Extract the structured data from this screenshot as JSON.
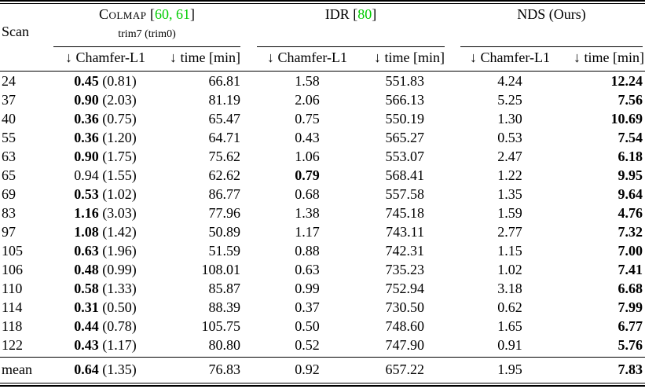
{
  "colors": {
    "citation_green": "#00cc00",
    "text": "#000000",
    "background": "#ffffff"
  },
  "table": {
    "scan_header": "Scan",
    "groups": {
      "colmap": {
        "name": "Colmap",
        "cite_open": " [",
        "cite": "60, 61",
        "cite_close": "]",
        "subtitle": "trim7 (trim0)"
      },
      "idr": {
        "name": "IDR",
        "cite_open": " [",
        "cite": "80",
        "cite_close": "]"
      },
      "nds": {
        "name": "NDS (Ours)"
      }
    },
    "subheaders": {
      "chamfer": "↓ Chamfer-L1",
      "time": "↓ time [min]"
    },
    "rows": [
      {
        "scan": "24",
        "colmap": {
          "chamfer": "0.45",
          "bold": true,
          "paren": "(0.81)",
          "time": "66.81"
        },
        "idr": {
          "chamfer": "1.58",
          "bold": false,
          "time": "551.83"
        },
        "nds": {
          "chamfer": "4.24",
          "time": "12.24",
          "time_bold": true
        }
      },
      {
        "scan": "37",
        "colmap": {
          "chamfer": "0.90",
          "bold": true,
          "paren": "(2.03)",
          "time": "81.19"
        },
        "idr": {
          "chamfer": "2.06",
          "bold": false,
          "time": "566.13"
        },
        "nds": {
          "chamfer": "5.25",
          "time": "7.56",
          "time_bold": true
        }
      },
      {
        "scan": "40",
        "colmap": {
          "chamfer": "0.36",
          "bold": true,
          "paren": "(0.75)",
          "time": "65.47"
        },
        "idr": {
          "chamfer": "0.75",
          "bold": false,
          "time": "550.19"
        },
        "nds": {
          "chamfer": "1.30",
          "time": "10.69",
          "time_bold": true
        }
      },
      {
        "scan": "55",
        "colmap": {
          "chamfer": "0.36",
          "bold": true,
          "paren": "(1.20)",
          "time": "64.71"
        },
        "idr": {
          "chamfer": "0.43",
          "bold": false,
          "time": "565.27"
        },
        "nds": {
          "chamfer": "0.53",
          "time": "7.54",
          "time_bold": true
        }
      },
      {
        "scan": "63",
        "colmap": {
          "chamfer": "0.90",
          "bold": true,
          "paren": "(1.75)",
          "time": "75.62"
        },
        "idr": {
          "chamfer": "1.06",
          "bold": false,
          "time": "553.07"
        },
        "nds": {
          "chamfer": "2.47",
          "time": "6.18",
          "time_bold": true
        }
      },
      {
        "scan": "65",
        "colmap": {
          "chamfer": "0.94",
          "bold": false,
          "paren": "(1.55)",
          "time": "62.62"
        },
        "idr": {
          "chamfer": "0.79",
          "bold": true,
          "time": "568.41"
        },
        "nds": {
          "chamfer": "1.22",
          "time": "9.95",
          "time_bold": true
        }
      },
      {
        "scan": "69",
        "colmap": {
          "chamfer": "0.53",
          "bold": true,
          "paren": "(1.02)",
          "time": "86.77"
        },
        "idr": {
          "chamfer": "0.68",
          "bold": false,
          "time": "557.58"
        },
        "nds": {
          "chamfer": "1.35",
          "time": "9.64",
          "time_bold": true
        }
      },
      {
        "scan": "83",
        "colmap": {
          "chamfer": "1.16",
          "bold": true,
          "paren": "(3.03)",
          "time": "77.96"
        },
        "idr": {
          "chamfer": "1.38",
          "bold": false,
          "time": "745.18"
        },
        "nds": {
          "chamfer": "1.59",
          "time": "4.76",
          "time_bold": true
        }
      },
      {
        "scan": "97",
        "colmap": {
          "chamfer": "1.08",
          "bold": true,
          "paren": "(1.42)",
          "time": "50.89"
        },
        "idr": {
          "chamfer": "1.17",
          "bold": false,
          "time": "743.11"
        },
        "nds": {
          "chamfer": "2.77",
          "time": "7.32",
          "time_bold": true
        }
      },
      {
        "scan": "105",
        "colmap": {
          "chamfer": "0.63",
          "bold": true,
          "paren": "(1.96)",
          "time": "51.59"
        },
        "idr": {
          "chamfer": "0.88",
          "bold": false,
          "time": "742.31"
        },
        "nds": {
          "chamfer": "1.15",
          "time": "7.00",
          "time_bold": true
        }
      },
      {
        "scan": "106",
        "colmap": {
          "chamfer": "0.48",
          "bold": true,
          "paren": "(0.99)",
          "time": "108.01"
        },
        "idr": {
          "chamfer": "0.63",
          "bold": false,
          "time": "735.23"
        },
        "nds": {
          "chamfer": "1.02",
          "time": "7.41",
          "time_bold": true
        }
      },
      {
        "scan": "110",
        "colmap": {
          "chamfer": "0.58",
          "bold": true,
          "paren": "(1.33)",
          "time": "85.87"
        },
        "idr": {
          "chamfer": "0.99",
          "bold": false,
          "time": "752.94"
        },
        "nds": {
          "chamfer": "3.18",
          "time": "6.68",
          "time_bold": true
        }
      },
      {
        "scan": "114",
        "colmap": {
          "chamfer": "0.31",
          "bold": true,
          "paren": "(0.50)",
          "time": "88.39"
        },
        "idr": {
          "chamfer": "0.37",
          "bold": false,
          "time": "730.50"
        },
        "nds": {
          "chamfer": "0.62",
          "time": "7.99",
          "time_bold": true
        }
      },
      {
        "scan": "118",
        "colmap": {
          "chamfer": "0.44",
          "bold": true,
          "paren": "(0.78)",
          "time": "105.75"
        },
        "idr": {
          "chamfer": "0.50",
          "bold": false,
          "time": "748.60"
        },
        "nds": {
          "chamfer": "1.65",
          "time": "6.77",
          "time_bold": true
        }
      },
      {
        "scan": "122",
        "colmap": {
          "chamfer": "0.43",
          "bold": true,
          "paren": "(1.17)",
          "time": "80.80"
        },
        "idr": {
          "chamfer": "0.52",
          "bold": false,
          "time": "747.90"
        },
        "nds": {
          "chamfer": "0.91",
          "time": "5.76",
          "time_bold": true
        }
      }
    ],
    "mean": {
      "scan": "mean",
      "colmap": {
        "chamfer": "0.64",
        "bold": true,
        "paren": "(1.35)",
        "time": "76.83"
      },
      "idr": {
        "chamfer": "0.92",
        "bold": false,
        "time": "657.22"
      },
      "nds": {
        "chamfer": "1.95",
        "time": "7.83",
        "time_bold": true
      }
    }
  }
}
